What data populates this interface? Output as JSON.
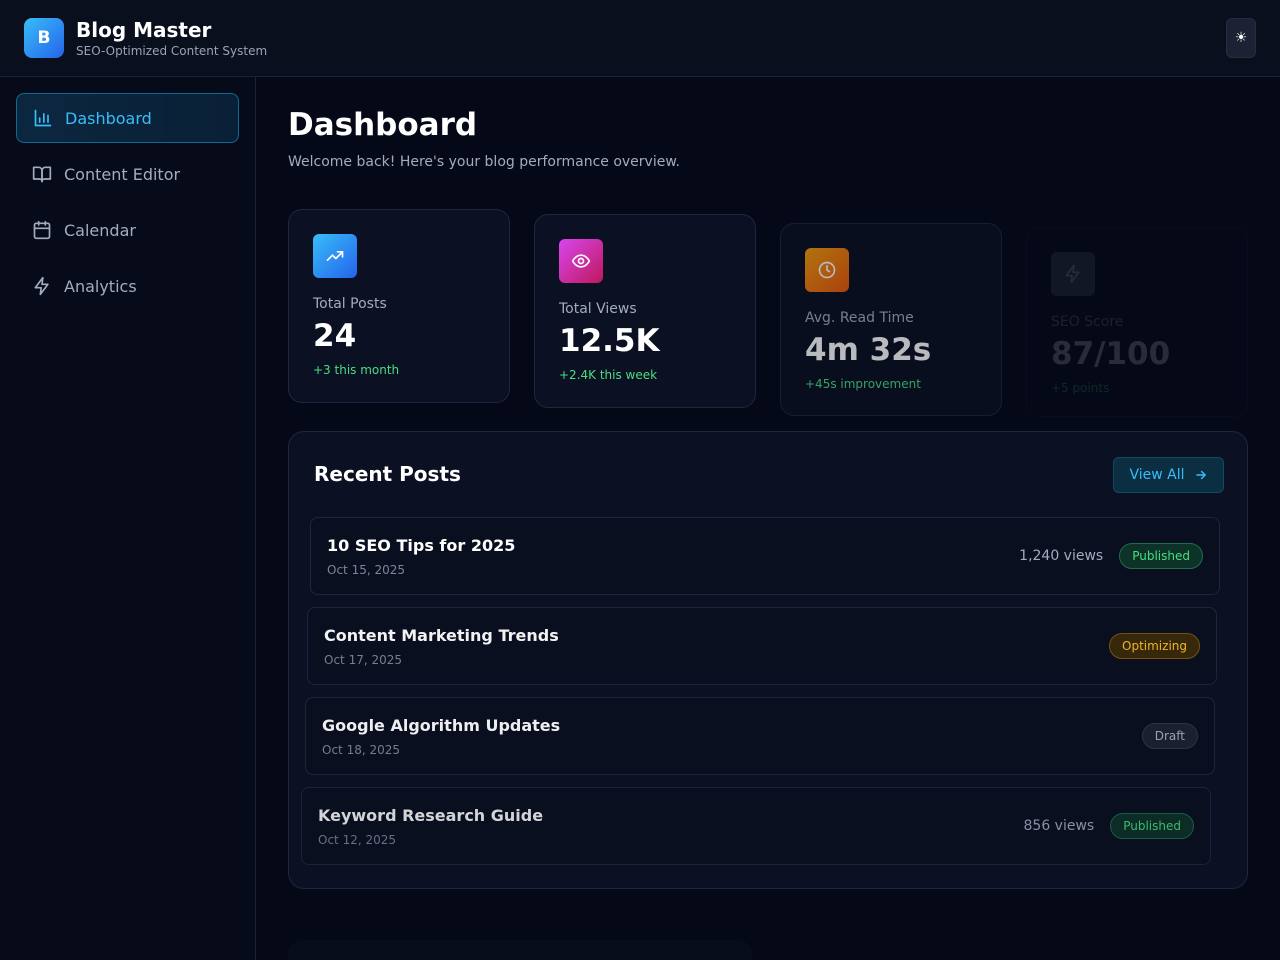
{
  "header": {
    "logo_letter": "B",
    "title": "Blog Master",
    "subtitle": "SEO-Optimized Content System",
    "theme_toggle_icon": "☀"
  },
  "sidebar": {
    "items": [
      {
        "label": "Dashboard",
        "icon": "bar-chart-icon",
        "active": true
      },
      {
        "label": "Content Editor",
        "icon": "book-open-icon",
        "active": false
      },
      {
        "label": "Calendar",
        "icon": "calendar-icon",
        "active": false
      },
      {
        "label": "Analytics",
        "icon": "lightning-icon",
        "active": false
      }
    ]
  },
  "main": {
    "title": "Dashboard",
    "subtitle": "Welcome back! Here's your blog performance overview.",
    "stats": [
      {
        "label": "Total Posts",
        "value": "24",
        "change": "+3 this month",
        "icon": "trending-up-icon",
        "color": "#2f8fea"
      },
      {
        "label": "Total Views",
        "value": "12.5K",
        "change": "+2.4K this week",
        "icon": "eye-icon",
        "color": "#c13fb0"
      },
      {
        "label": "Avg. Read Time",
        "value": "4m 32s",
        "change": "+45s improvement",
        "icon": "clock-icon",
        "color": "#e07516"
      },
      {
        "label": "SEO Score",
        "value": "87/100",
        "change": "+5 points",
        "icon": "lightning-icon",
        "color": "#1e293b"
      }
    ],
    "recent_posts": {
      "title": "Recent Posts",
      "view_all_label": "View All",
      "posts": [
        {
          "title": "10 SEO Tips for 2025",
          "date": "Oct 15, 2025",
          "views": "1,240 views",
          "status": "Published"
        },
        {
          "title": "Content Marketing Trends",
          "date": "Oct 17, 2025",
          "views": "",
          "status": "Optimizing"
        },
        {
          "title": "Google Algorithm Updates",
          "date": "Oct 18, 2025",
          "views": "",
          "status": "Draft"
        },
        {
          "title": "Keyword Research Guide",
          "date": "Oct 12, 2025",
          "views": "856 views",
          "status": "Published"
        }
      ]
    }
  }
}
